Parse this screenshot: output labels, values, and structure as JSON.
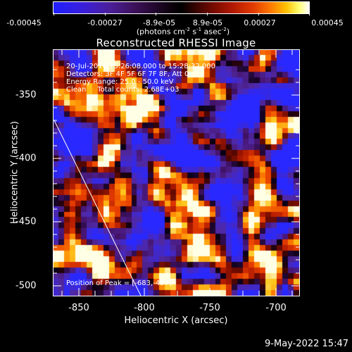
{
  "colorbar": {
    "ticks": [
      "-0.00045",
      "-0.00027",
      "-8.9e-05",
      "8.9e-05",
      "0.00027",
      "0.00045"
    ],
    "units_text": "(photons cm",
    "units_sup1": "-2",
    "units_mid": " s",
    "units_sup2": "-1",
    "units_end": " asec",
    "units_sup3": "-2",
    "units_close": ")"
  },
  "title": "Reconstructed RHESSI Image",
  "info": {
    "line1": "20-Jul-2010 15:26:08.000 to 15:28:32.000",
    "line2": "Detectors: 3F 4F 5F 6F 7F 8F, Att 0",
    "line3": "Energy Range: 25.0 - 50.0 keV",
    "line4": "Clean     Total counts: 2.68E+03"
  },
  "peak_label": "Position of Peak = [-683,-457]",
  "x_axis": {
    "label": "Heliocentric X (arcsec)",
    "ticks": [
      "-850",
      "-800",
      "-750",
      "-700"
    ]
  },
  "y_axis": {
    "label": "Heliocentric Y (arcsec)",
    "ticks": [
      "-350",
      "-400",
      "-450",
      "-500"
    ]
  },
  "timestamp": "9-May-2022 15:47"
}
